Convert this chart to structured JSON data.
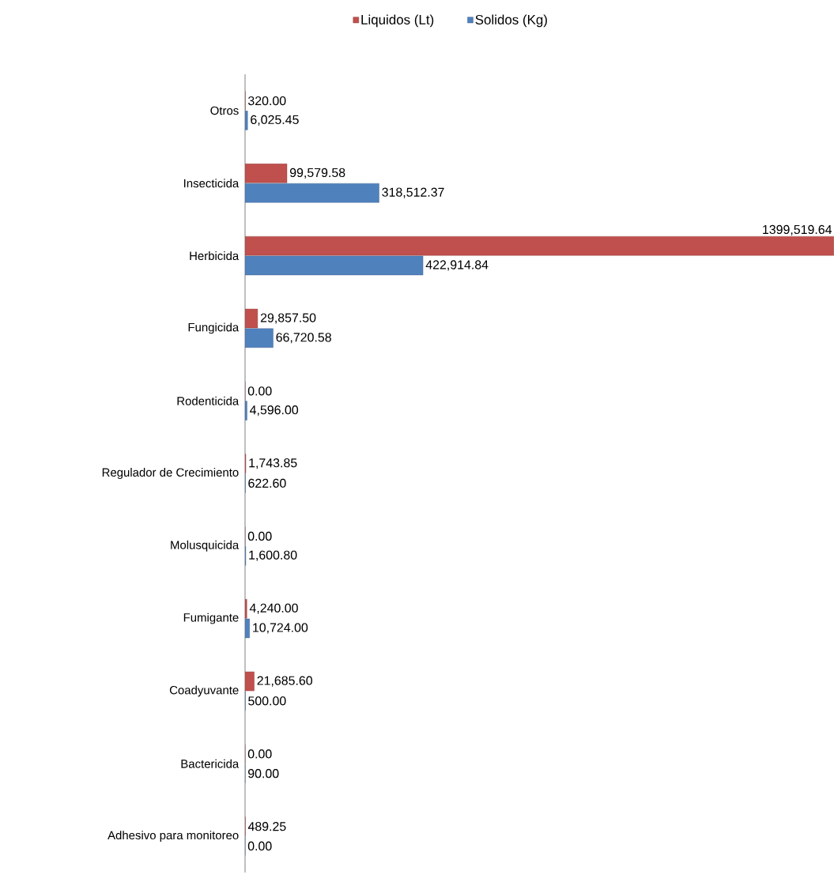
{
  "chart_data": {
    "type": "bar",
    "orientation": "horizontal",
    "categories": [
      "Otros",
      "Insecticida",
      "Herbicida",
      "Fungicida",
      "Rodenticida",
      "Regulador de Crecimiento",
      "Molusquicida",
      "Fumigante",
      "Coadyuvante",
      "Bactericida",
      "Adhesivo para monitoreo"
    ],
    "series": [
      {
        "name": "Liquidos (Lt)",
        "color": "#c0504d",
        "values": [
          320.0,
          99579.58,
          1399519.64,
          29857.5,
          0.0,
          1743.85,
          0.0,
          4240.0,
          21685.6,
          0.0,
          489.25
        ],
        "value_labels": [
          "320.00",
          "99,579.58",
          "1399,519.64",
          "29,857.50",
          "0.00",
          "1,743.85",
          "0.00",
          "4,240.00",
          "21,685.60",
          "0.00",
          "489.25"
        ]
      },
      {
        "name": "Solidos (Kg)",
        "color": "#4f81bd",
        "values": [
          6025.45,
          318512.37,
          422914.84,
          66720.58,
          4596.0,
          622.6,
          1600.8,
          10724.0,
          500.0,
          90.0,
          0.0
        ],
        "value_labels": [
          "6,025.45",
          "318,512.37",
          "422,914.84",
          "66,720.58",
          "4,596.00",
          "622.60",
          "1,600.80",
          "10,724.00",
          "500.00",
          "90.00",
          "0.00"
        ]
      }
    ],
    "xlim": [
      0,
      1400000
    ],
    "tick_labels": "y",
    "legend": "top",
    "grid": false
  }
}
